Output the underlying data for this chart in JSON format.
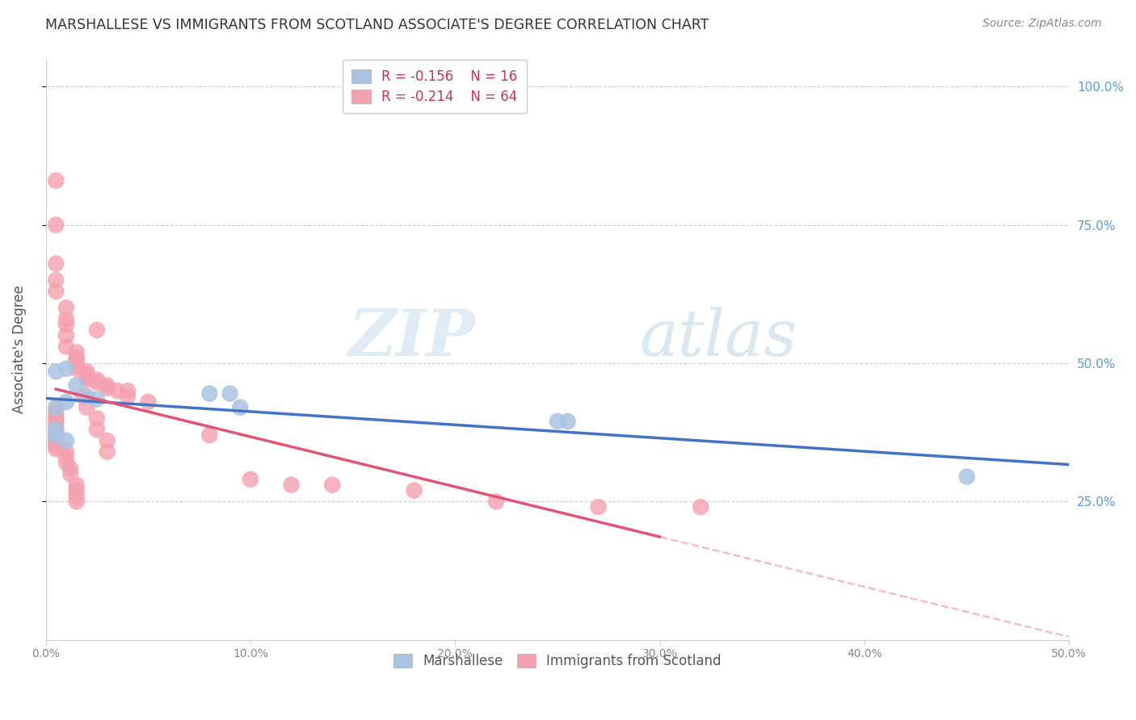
{
  "title": "MARSHALLESE VS IMMIGRANTS FROM SCOTLAND ASSOCIATE'S DEGREE CORRELATION CHART",
  "source": "Source: ZipAtlas.com",
  "ylabel": "Associate's Degree",
  "right_yticks": [
    "100.0%",
    "75.0%",
    "50.0%",
    "25.0%"
  ],
  "right_ytick_vals": [
    1.0,
    0.75,
    0.5,
    0.25
  ],
  "xlim": [
    0.0,
    0.5
  ],
  "ylim": [
    0.0,
    1.05
  ],
  "legend_r1": "-0.156",
  "legend_n1": "16",
  "legend_r2": "-0.214",
  "legend_n2": "64",
  "color_blue": "#a8c4e0",
  "color_pink": "#f4a0b0",
  "color_blue_line": "#4472c4",
  "color_pink_line": "#e05575",
  "watermark_zip": "ZIP",
  "watermark_atlas": "atlas",
  "marshallese_x": [
    0.005,
    0.01,
    0.015,
    0.02,
    0.025,
    0.005,
    0.01,
    0.005,
    0.08,
    0.09,
    0.095,
    0.25,
    0.255,
    0.005,
    0.01,
    0.45
  ],
  "marshallese_y": [
    0.485,
    0.49,
    0.46,
    0.44,
    0.435,
    0.42,
    0.43,
    0.38,
    0.445,
    0.445,
    0.42,
    0.395,
    0.395,
    0.37,
    0.36,
    0.295
  ],
  "scotland_x": [
    0.005,
    0.005,
    0.005,
    0.005,
    0.005,
    0.01,
    0.01,
    0.01,
    0.01,
    0.01,
    0.015,
    0.015,
    0.015,
    0.015,
    0.015,
    0.015,
    0.02,
    0.02,
    0.02,
    0.02,
    0.025,
    0.025,
    0.025,
    0.03,
    0.03,
    0.035,
    0.04,
    0.04,
    0.05,
    0.005,
    0.005,
    0.005,
    0.005,
    0.005,
    0.005,
    0.005,
    0.005,
    0.005,
    0.005,
    0.005,
    0.008,
    0.01,
    0.01,
    0.01,
    0.012,
    0.012,
    0.015,
    0.015,
    0.015,
    0.015,
    0.018,
    0.02,
    0.025,
    0.025,
    0.03,
    0.03,
    0.08,
    0.1,
    0.12,
    0.14,
    0.18,
    0.22,
    0.27,
    0.32
  ],
  "scotland_y": [
    0.83,
    0.75,
    0.68,
    0.65,
    0.63,
    0.6,
    0.58,
    0.57,
    0.55,
    0.53,
    0.52,
    0.51,
    0.505,
    0.5,
    0.495,
    0.49,
    0.485,
    0.48,
    0.475,
    0.47,
    0.47,
    0.465,
    0.56,
    0.46,
    0.455,
    0.45,
    0.45,
    0.44,
    0.43,
    0.42,
    0.41,
    0.4,
    0.395,
    0.385,
    0.375,
    0.365,
    0.36,
    0.355,
    0.35,
    0.345,
    0.345,
    0.34,
    0.33,
    0.32,
    0.31,
    0.3,
    0.28,
    0.27,
    0.26,
    0.25,
    0.44,
    0.42,
    0.4,
    0.38,
    0.36,
    0.34,
    0.37,
    0.29,
    0.28,
    0.28,
    0.27,
    0.25,
    0.24,
    0.24
  ]
}
